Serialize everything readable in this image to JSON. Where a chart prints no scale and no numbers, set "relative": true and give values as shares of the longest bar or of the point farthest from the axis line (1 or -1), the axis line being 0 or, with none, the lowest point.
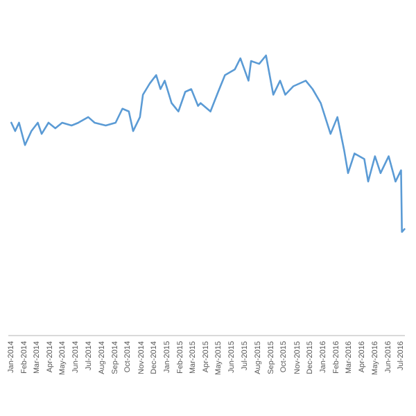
{
  "chart_data": {
    "type": "line",
    "relative": true,
    "x": [
      "2014-01-01",
      "2014-01-10",
      "2014-01-19",
      "2014-02-02",
      "2014-02-17",
      "2014-03-04",
      "2014-03-13",
      "2014-03-29",
      "2014-04-14",
      "2014-04-30",
      "2014-05-22",
      "2014-06-07",
      "2014-06-30",
      "2014-07-15",
      "2014-08-10",
      "2014-09-02",
      "2014-09-18",
      "2014-10-03",
      "2014-10-13",
      "2014-10-29",
      "2014-11-05",
      "2014-11-21",
      "2014-12-06",
      "2014-12-16",
      "2014-12-26",
      "2015-01-11",
      "2015-01-27",
      "2015-02-12",
      "2015-02-26",
      "2015-03-14",
      "2015-03-20",
      "2015-04-12",
      "2015-04-30",
      "2015-05-16",
      "2015-06-08",
      "2015-06-21",
      "2015-07-10",
      "2015-07-16",
      "2015-08-04",
      "2015-08-20",
      "2015-09-06",
      "2015-09-22",
      "2015-10-04",
      "2015-10-23",
      "2015-11-21",
      "2015-12-07",
      "2015-12-26",
      "2016-01-18",
      "2016-02-03",
      "2016-02-19",
      "2016-02-28",
      "2016-03-14",
      "2016-04-06",
      "2016-04-15",
      "2016-05-01",
      "2016-05-14",
      "2016-06-02",
      "2016-06-18",
      "2016-07-01",
      "2016-07-03",
      "2016-07-09"
    ],
    "series": [
      {
        "color": "#5b9bd5",
        "values": [
          0.76,
          0.73,
          0.76,
          0.68,
          0.73,
          0.76,
          0.72,
          0.76,
          0.74,
          0.76,
          0.75,
          0.76,
          0.78,
          0.76,
          0.75,
          0.76,
          0.81,
          0.8,
          0.73,
          0.78,
          0.86,
          0.9,
          0.93,
          0.88,
          0.91,
          0.83,
          0.8,
          0.87,
          0.88,
          0.82,
          0.83,
          0.8,
          0.87,
          0.93,
          0.95,
          0.99,
          0.91,
          0.98,
          0.97,
          1,
          0.86,
          0.91,
          0.86,
          0.89,
          0.91,
          0.88,
          0.83,
          0.72,
          0.78,
          0.66,
          0.58,
          0.65,
          0.63,
          0.55,
          0.64,
          0.58,
          0.64,
          0.55,
          0.59,
          0.37,
          0.38
        ]
      }
    ],
    "xlim": [
      "2013-12-25",
      "2016-07-10"
    ],
    "xticks": [
      {
        "value": "2014-01-01",
        "label": "Jan-2014"
      },
      {
        "value": "2014-02-01",
        "label": "Feb-2014"
      },
      {
        "value": "2014-03-01",
        "label": "Mar-2014"
      },
      {
        "value": "2014-04-01",
        "label": "Apr-2014"
      },
      {
        "value": "2014-05-01",
        "label": "May-2014"
      },
      {
        "value": "2014-06-01",
        "label": "Jun-2014"
      },
      {
        "value": "2014-07-01",
        "label": "Jul-2014"
      },
      {
        "value": "2014-08-01",
        "label": "Aug-2014"
      },
      {
        "value": "2014-09-01",
        "label": "Sep-2014"
      },
      {
        "value": "2014-10-01",
        "label": "Oct-2014"
      },
      {
        "value": "2014-11-01",
        "label": "Nov-2014"
      },
      {
        "value": "2014-12-01",
        "label": "Dec-2014"
      },
      {
        "value": "2015-01-01",
        "label": "Jan-2015"
      },
      {
        "value": "2015-02-01",
        "label": "Feb-2015"
      },
      {
        "value": "2015-03-01",
        "label": "Mar-2015"
      },
      {
        "value": "2015-04-01",
        "label": "Apr-2015"
      },
      {
        "value": "2015-05-01",
        "label": "May-2015"
      },
      {
        "value": "2015-06-01",
        "label": "Jun-2015"
      },
      {
        "value": "2015-07-01",
        "label": "Jul-2015"
      },
      {
        "value": "2015-08-01",
        "label": "Aug-2015"
      },
      {
        "value": "2015-09-01",
        "label": "Sep-2015"
      },
      {
        "value": "2015-10-01",
        "label": "Oct-2015"
      },
      {
        "value": "2015-11-01",
        "label": "Nov-2015"
      },
      {
        "value": "2015-12-01",
        "label": "Dec-2015"
      },
      {
        "value": "2016-01-01",
        "label": "Jan-2016"
      },
      {
        "value": "2016-02-01",
        "label": "Feb-2016"
      },
      {
        "value": "2016-03-01",
        "label": "Mar-2016"
      },
      {
        "value": "2016-04-01",
        "label": "Apr-2016"
      },
      {
        "value": "2016-05-01",
        "label": "May-2016"
      },
      {
        "value": "2016-06-01",
        "label": "Jun-2016"
      },
      {
        "value": "2016-07-01",
        "label": "Jul-2016"
      }
    ]
  }
}
